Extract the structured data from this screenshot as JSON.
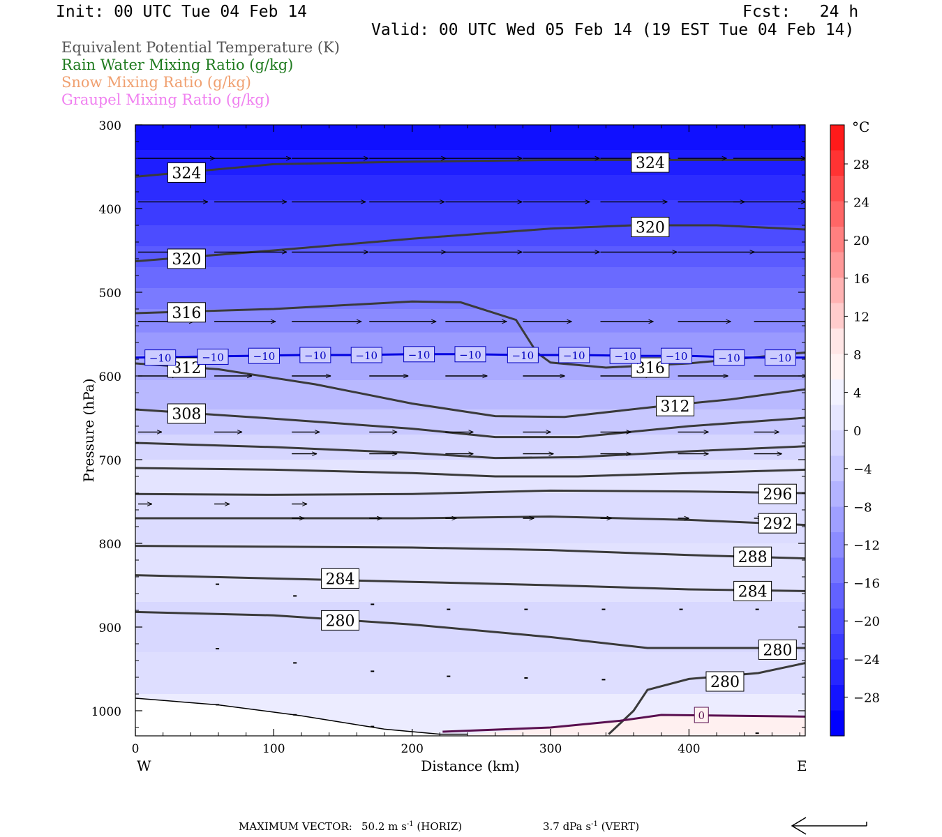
{
  "header": {
    "init": "Init: 00 UTC Tue 04 Feb 14",
    "fcst": "Fcst:   24 h",
    "valid": "Valid: 00 UTC Wed 05 Feb 14 (19 EST Tue 04 Feb 14)"
  },
  "legend": [
    {
      "label": "Equivalent Potential Temperature (K)",
      "color": "#555555"
    },
    {
      "label": "Rain Water Mixing Ratio (g/kg)",
      "color": "#1e7a1e"
    },
    {
      "label": "Snow Mixing Ratio (g/kg)",
      "color": "#f0a070"
    },
    {
      "label": "Graupel Mixing Ratio (g/kg)",
      "color": "#f080f0"
    }
  ],
  "footer": {
    "max_vector_label": "MAXIMUM VECTOR:",
    "horiz": "50.2 m s",
    "horiz_unit": "(HORIZ)",
    "vert": "3.7 dPa s",
    "vert_unit": "(VERT)",
    "exp": "-1"
  },
  "chart_data": {
    "type": "heatmap",
    "ylabel": "Pressure (hPa)",
    "xlabel": "Distance (km)",
    "xlim": [
      0,
      484
    ],
    "ylim": [
      1030,
      300
    ],
    "x_ticks": [
      0,
      100,
      200,
      300,
      400
    ],
    "y_ticks": [
      300,
      400,
      500,
      600,
      700,
      800,
      900,
      1000
    ],
    "x_end_labels": {
      "left": "W",
      "right": "E"
    },
    "colorbar": {
      "unit": "°C",
      "ticks": [
        "28",
        "24",
        "20",
        "16",
        "12",
        "8",
        "4",
        "0",
        "−4",
        "−8",
        "−12",
        "−16",
        "−20",
        "−24",
        "−28"
      ],
      "colors_top_to_bottom": [
        "#ff1a1a",
        "#ff3333",
        "#ff4d4d",
        "#ff6666",
        "#ff8080",
        "#ff9999",
        "#ffb3b3",
        "#ffcccc",
        "#ffe6e6",
        "#fff2f2",
        "#f2f2ff",
        "#e6e6ff",
        "#d6d6ff",
        "#c6c6ff",
        "#b3b3ff",
        "#9f9fff",
        "#8c8cff",
        "#7777ff",
        "#6262ff",
        "#4d4dff",
        "#3a3aff",
        "#2626ff",
        "#1414ff",
        "#0000ff"
      ]
    },
    "theta_e_contours": [
      {
        "label": "324",
        "points": [
          [
            0,
            362
          ],
          [
            100,
            347
          ],
          [
            200,
            344
          ],
          [
            300,
            342
          ],
          [
            400,
            342
          ],
          [
            484,
            342
          ]
        ]
      },
      {
        "label": "320",
        "points": [
          [
            0,
            463
          ],
          [
            100,
            450
          ],
          [
            200,
            436
          ],
          [
            300,
            424
          ],
          [
            360,
            420
          ],
          [
            420,
            420
          ],
          [
            484,
            425
          ]
        ]
      },
      {
        "label": "316",
        "points": [
          [
            0,
            525
          ],
          [
            100,
            520
          ],
          [
            200,
            511
          ],
          [
            235,
            512
          ],
          [
            275,
            533
          ],
          [
            290,
            572
          ],
          [
            300,
            584
          ],
          [
            340,
            590
          ],
          [
            400,
            585
          ],
          [
            484,
            572
          ]
        ]
      },
      {
        "label": "312",
        "points": [
          [
            0,
            585
          ],
          [
            60,
            592
          ],
          [
            130,
            610
          ],
          [
            200,
            633
          ],
          [
            260,
            648
          ],
          [
            310,
            649
          ],
          [
            380,
            636
          ],
          [
            430,
            628
          ],
          [
            484,
            616
          ]
        ]
      },
      {
        "label": "308",
        "points": [
          [
            0,
            640
          ],
          [
            100,
            651
          ],
          [
            200,
            663
          ],
          [
            260,
            673
          ],
          [
            320,
            673
          ],
          [
            400,
            660
          ],
          [
            484,
            650
          ]
        ]
      },
      {
        "label": "",
        "points": [
          [
            0,
            680
          ],
          [
            100,
            685
          ],
          [
            200,
            692
          ],
          [
            260,
            698
          ],
          [
            320,
            697
          ],
          [
            400,
            690
          ],
          [
            484,
            684
          ]
        ]
      },
      {
        "label": "",
        "points": [
          [
            0,
            710
          ],
          [
            100,
            712
          ],
          [
            200,
            716
          ],
          [
            260,
            720
          ],
          [
            320,
            720
          ],
          [
            400,
            716
          ],
          [
            484,
            712
          ]
        ]
      },
      {
        "label": "296",
        "points": [
          [
            0,
            741
          ],
          [
            100,
            742
          ],
          [
            200,
            741
          ],
          [
            300,
            737
          ],
          [
            400,
            738
          ],
          [
            484,
            740
          ]
        ]
      },
      {
        "label": "292",
        "points": [
          [
            0,
            770
          ],
          [
            100,
            770
          ],
          [
            200,
            770
          ],
          [
            300,
            768
          ],
          [
            400,
            772
          ],
          [
            484,
            778
          ]
        ]
      },
      {
        "label": "288",
        "points": [
          [
            0,
            803
          ],
          [
            100,
            804
          ],
          [
            200,
            805
          ],
          [
            300,
            808
          ],
          [
            400,
            814
          ],
          [
            484,
            818
          ]
        ]
      },
      {
        "label": "284",
        "points": [
          [
            0,
            838
          ],
          [
            100,
            842
          ],
          [
            200,
            846
          ],
          [
            300,
            850
          ],
          [
            400,
            855
          ],
          [
            484,
            857
          ]
        ]
      },
      {
        "label": "280",
        "points": [
          [
            0,
            882
          ],
          [
            100,
            886
          ],
          [
            200,
            897
          ],
          [
            300,
            912
          ],
          [
            370,
            925
          ],
          [
            430,
            925
          ],
          [
            484,
            925
          ]
        ]
      },
      {
        "label": "280",
        "points": [
          [
            342,
            1028
          ],
          [
            360,
            1000
          ],
          [
            370,
            975
          ],
          [
            400,
            962
          ],
          [
            450,
            955
          ],
          [
            484,
            943
          ]
        ]
      }
    ],
    "theta_e_labels": [
      {
        "text": "324",
        "x": 37,
        "p": 357
      },
      {
        "text": "324",
        "x": 372,
        "p": 345
      },
      {
        "text": "320",
        "x": 37,
        "p": 460
      },
      {
        "text": "320",
        "x": 372,
        "p": 422
      },
      {
        "text": "316",
        "x": 37,
        "p": 524
      },
      {
        "text": "316",
        "x": 372,
        "p": 590
      },
      {
        "text": "312",
        "x": 37,
        "p": 590
      },
      {
        "text": "312",
        "x": 390,
        "p": 636
      },
      {
        "text": "308",
        "x": 37,
        "p": 645
      },
      {
        "text": "296",
        "x": 464,
        "p": 741
      },
      {
        "text": "292",
        "x": 464,
        "p": 776
      },
      {
        "text": "288",
        "x": 446,
        "p": 816
      },
      {
        "text": "284",
        "x": 446,
        "p": 857
      },
      {
        "text": "284",
        "x": 148,
        "p": 842
      },
      {
        "text": "280",
        "x": 148,
        "p": 892
      },
      {
        "text": "280",
        "x": 464,
        "p": 927
      },
      {
        "text": "280",
        "x": 426,
        "p": 965
      }
    ],
    "isotherm_minus10": {
      "p": [
        578,
        577,
        576,
        575,
        575,
        574,
        574,
        575,
        575,
        576,
        576,
        578,
        578
      ],
      "x": [
        0,
        40,
        80,
        120,
        160,
        200,
        240,
        280,
        320,
        360,
        400,
        440,
        484
      ],
      "labels_x": [
        18,
        56,
        93,
        130,
        167,
        205,
        242,
        280,
        317,
        354,
        391,
        429,
        466
      ],
      "label": "−10"
    },
    "isotherm_zero": {
      "label": "0",
      "points": [
        [
          222,
          1025
        ],
        [
          300,
          1020
        ],
        [
          350,
          1012
        ],
        [
          380,
          1005
        ],
        [
          484,
          1007
        ]
      ],
      "label_x": 409,
      "label_p": 1005
    },
    "terrain": {
      "points": [
        [
          0,
          985
        ],
        [
          60,
          993
        ],
        [
          120,
          1006
        ],
        [
          180,
          1022
        ],
        [
          220,
          1028
        ],
        [
          240,
          1028
        ]
      ]
    },
    "wind_vectors": [
      {
        "p": 340,
        "items": [
          [
            0,
            55
          ],
          [
            55,
            55
          ],
          [
            111,
            55
          ],
          [
            167,
            55
          ],
          [
            222,
            55
          ],
          [
            278,
            55
          ],
          [
            334,
            50
          ],
          [
            390,
            35
          ],
          [
            430,
            52
          ]
        ]
      },
      {
        "p": 392,
        "items": [
          [
            0,
            50
          ],
          [
            55,
            52
          ],
          [
            111,
            53
          ],
          [
            167,
            54
          ],
          [
            222,
            55
          ],
          [
            278,
            48
          ],
          [
            334,
            48
          ],
          [
            390,
            48
          ],
          [
            430,
            52
          ]
        ]
      },
      {
        "p": 452,
        "items": [
          [
            0,
            48
          ],
          [
            55,
            52
          ],
          [
            111,
            55
          ],
          [
            167,
            55
          ],
          [
            222,
            55
          ],
          [
            278,
            55
          ],
          [
            334,
            55
          ],
          [
            390,
            55
          ],
          [
            445,
            40
          ]
        ]
      },
      {
        "p": 535,
        "items": [
          [
            0,
            40
          ],
          [
            55,
            44
          ],
          [
            111,
            50
          ],
          [
            167,
            48
          ],
          [
            222,
            44
          ],
          [
            278,
            35
          ],
          [
            334,
            38
          ],
          [
            390,
            38
          ],
          [
            445,
            40
          ]
        ]
      },
      {
        "p": 600,
        "items": [
          [
            0,
            28
          ],
          [
            55,
            27
          ],
          [
            111,
            28
          ],
          [
            167,
            28
          ],
          [
            222,
            30
          ],
          [
            278,
            30
          ],
          [
            334,
            36
          ],
          [
            390,
            36
          ],
          [
            445,
            38
          ]
        ]
      },
      {
        "p": 667,
        "items": [
          [
            0,
            17
          ],
          [
            55,
            20
          ],
          [
            111,
            20
          ],
          [
            167,
            20
          ],
          [
            222,
            20
          ],
          [
            278,
            20
          ],
          [
            334,
            22
          ],
          [
            390,
            22
          ],
          [
            445,
            18
          ]
        ]
      },
      {
        "p": 693,
        "items": [
          [
            111,
            18
          ],
          [
            167,
            20
          ],
          [
            222,
            20
          ],
          [
            278,
            22
          ],
          [
            334,
            22
          ],
          [
            390,
            22
          ],
          [
            445,
            20
          ]
        ]
      },
      {
        "p": 753,
        "items": [
          [
            0,
            10
          ],
          [
            55,
            11
          ],
          [
            111,
            11
          ]
        ]
      },
      {
        "p": 770,
        "items": [
          [
            111,
            9
          ],
          [
            167,
            9
          ],
          [
            222,
            8
          ],
          [
            278,
            8
          ],
          [
            334,
            8
          ],
          [
            390,
            8
          ],
          [
            445,
            6
          ]
        ]
      }
    ]
  }
}
